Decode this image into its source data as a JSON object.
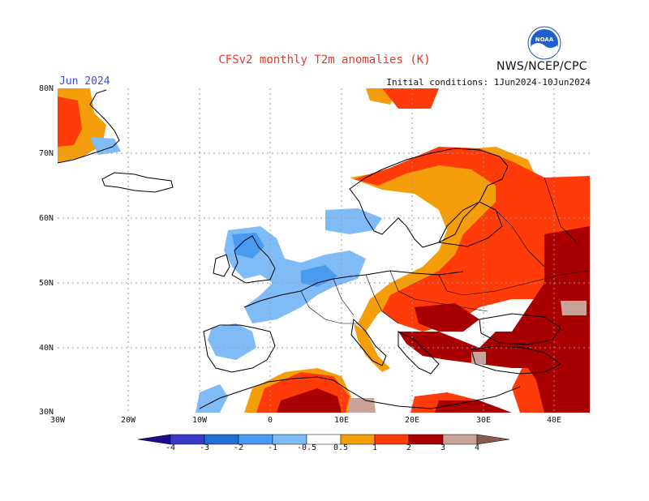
{
  "header": {
    "title": "CFSv2 monthly T2m anomalies (K)",
    "agency": "NWS/NCEP/CPC",
    "logo_text": "NOAA",
    "month": "Jun 2024",
    "init": "Initial conditions: 1Jun2024-10Jun2024"
  },
  "map": {
    "lat_labels": [
      "80N",
      "70N",
      "60N",
      "50N",
      "40N",
      "30N"
    ],
    "lon_labels": [
      "30W",
      "20W",
      "10W",
      "0",
      "10E",
      "20E",
      "30E",
      "40E"
    ],
    "colors": {
      "land_outline": "#000000",
      "grid": "#9a9a9a"
    }
  },
  "legend": {
    "labels": [
      "-4",
      "-3",
      "-2",
      "-1",
      "-0.5",
      "0.5",
      "1",
      "2",
      "3",
      "4"
    ],
    "colors": [
      "#1a0c8c",
      "#3a3ac8",
      "#1f6fd4",
      "#4a9af0",
      "#7fbcf7",
      "#ffffff",
      "#f59e0b",
      "#ff3b0a",
      "#a80000",
      "#c9a29a",
      "#8a5a50"
    ]
  }
}
